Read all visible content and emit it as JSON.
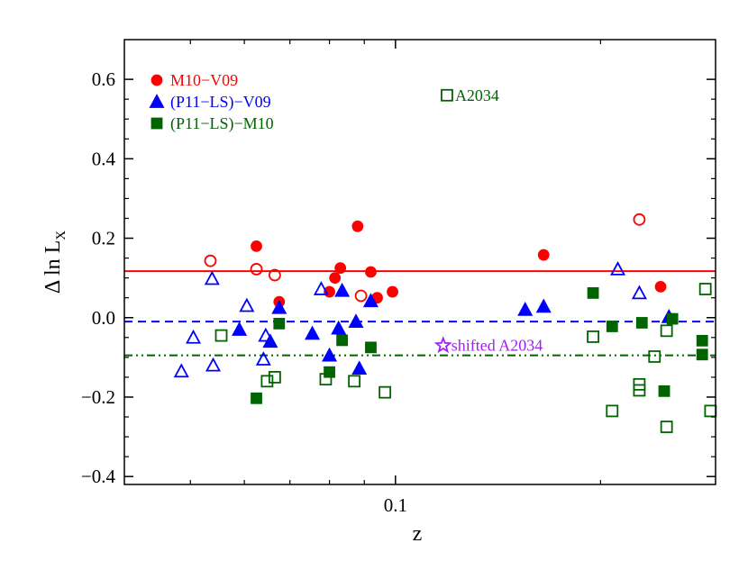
{
  "chart_data": {
    "type": "scatter",
    "xlabel": "z",
    "ylabel_main": "Δ ln L",
    "ylabel_sub": "X",
    "xscale": "log",
    "xlim": [
      0.04,
      0.295
    ],
    "ylim": [
      -0.42,
      0.7
    ],
    "x_tick_labels": [
      {
        "value": 0.1,
        "label": "0.1"
      }
    ],
    "y_ticks": [
      -0.4,
      -0.2,
      0.0,
      0.2,
      0.4,
      0.6
    ],
    "y_tick_labels": [
      "−0.4",
      "−0.2",
      "0.0",
      "0.2",
      "0.4",
      "0.6"
    ],
    "x_minor_ticks": [
      0.05,
      0.06,
      0.07,
      0.08,
      0.09,
      0.2
    ],
    "grid": false,
    "legend_position": "top-left",
    "colors": {
      "red": "#ff0000",
      "blue": "#0000ff",
      "green": "#006400",
      "purple": "#a020f0"
    },
    "series": [
      {
        "name": "M10−V09",
        "color": "#ff0000",
        "marker": "circle",
        "mean_line": 0.117,
        "line_style": "solid",
        "points": [
          {
            "x": 0.0625,
            "y": 0.18,
            "filled": true
          },
          {
            "x": 0.0675,
            "y": 0.04,
            "filled": true
          },
          {
            "x": 0.08,
            "y": 0.065,
            "filled": true
          },
          {
            "x": 0.0815,
            "y": 0.1,
            "filled": true
          },
          {
            "x": 0.083,
            "y": 0.125,
            "filled": true
          },
          {
            "x": 0.088,
            "y": 0.23,
            "filled": true
          },
          {
            "x": 0.092,
            "y": 0.115,
            "filled": true
          },
          {
            "x": 0.094,
            "y": 0.05,
            "filled": true
          },
          {
            "x": 0.099,
            "y": 0.065,
            "filled": true
          },
          {
            "x": 0.165,
            "y": 0.158,
            "filled": true
          },
          {
            "x": 0.245,
            "y": 0.078,
            "filled": true
          },
          {
            "x": 0.0535,
            "y": 0.143,
            "filled": false
          },
          {
            "x": 0.0625,
            "y": 0.122,
            "filled": false
          },
          {
            "x": 0.0665,
            "y": 0.107,
            "filled": false
          },
          {
            "x": 0.089,
            "y": 0.055,
            "filled": false
          },
          {
            "x": 0.228,
            "y": 0.247,
            "filled": false
          }
        ]
      },
      {
        "name": "(P11−LS)−V09",
        "color": "#0000ff",
        "marker": "triangle",
        "mean_line": -0.01,
        "line_style": "dashed",
        "points": [
          {
            "x": 0.0505,
            "y": -0.05,
            "filled": false
          },
          {
            "x": 0.0485,
            "y": -0.135,
            "filled": false
          },
          {
            "x": 0.0538,
            "y": 0.098,
            "filled": false
          },
          {
            "x": 0.054,
            "y": -0.12,
            "filled": false
          },
          {
            "x": 0.0605,
            "y": 0.03,
            "filled": false
          },
          {
            "x": 0.0645,
            "y": -0.045,
            "filled": false
          },
          {
            "x": 0.064,
            "y": -0.105,
            "filled": false
          },
          {
            "x": 0.0778,
            "y": 0.072,
            "filled": false
          },
          {
            "x": 0.212,
            "y": 0.122,
            "filled": false
          },
          {
            "x": 0.228,
            "y": 0.062,
            "filled": false
          },
          {
            "x": 0.059,
            "y": -0.03,
            "filled": true
          },
          {
            "x": 0.0655,
            "y": -0.06,
            "filled": true
          },
          {
            "x": 0.0675,
            "y": 0.025,
            "filled": true
          },
          {
            "x": 0.0755,
            "y": -0.04,
            "filled": true
          },
          {
            "x": 0.08,
            "y": -0.095,
            "filled": true
          },
          {
            "x": 0.0825,
            "y": -0.027,
            "filled": true
          },
          {
            "x": 0.0835,
            "y": 0.068,
            "filled": true
          },
          {
            "x": 0.0875,
            "y": -0.01,
            "filled": true
          },
          {
            "x": 0.0885,
            "y": -0.128,
            "filled": true
          },
          {
            "x": 0.092,
            "y": 0.042,
            "filled": true
          },
          {
            "x": 0.155,
            "y": 0.02,
            "filled": true
          },
          {
            "x": 0.165,
            "y": 0.028,
            "filled": true
          },
          {
            "x": 0.252,
            "y": 0.002,
            "filled": true
          }
        ]
      },
      {
        "name": "(P11−LS)−M10",
        "color": "#006400",
        "marker": "square",
        "mean_line": -0.095,
        "line_style": "dash-dot-dot",
        "points": [
          {
            "x": 0.0555,
            "y": -0.045,
            "filled": false
          },
          {
            "x": 0.0648,
            "y": -0.16,
            "filled": false
          },
          {
            "x": 0.0665,
            "y": -0.15,
            "filled": false
          },
          {
            "x": 0.079,
            "y": -0.155,
            "filled": false
          },
          {
            "x": 0.087,
            "y": -0.16,
            "filled": false
          },
          {
            "x": 0.0965,
            "y": -0.188,
            "filled": false
          },
          {
            "x": 0.195,
            "y": -0.048,
            "filled": false
          },
          {
            "x": 0.208,
            "y": -0.235,
            "filled": false
          },
          {
            "x": 0.228,
            "y": -0.168,
            "filled": false
          },
          {
            "x": 0.228,
            "y": -0.183,
            "filled": false
          },
          {
            "x": 0.24,
            "y": -0.098,
            "filled": false
          },
          {
            "x": 0.25,
            "y": -0.033,
            "filled": false
          },
          {
            "x": 0.25,
            "y": -0.275,
            "filled": false
          },
          {
            "x": 0.285,
            "y": 0.072,
            "filled": false
          },
          {
            "x": 0.29,
            "y": -0.235,
            "filled": false
          },
          {
            "x": 0.0625,
            "y": -0.203,
            "filled": true
          },
          {
            "x": 0.0675,
            "y": -0.015,
            "filled": true
          },
          {
            "x": 0.08,
            "y": -0.137,
            "filled": true
          },
          {
            "x": 0.0835,
            "y": -0.057,
            "filled": true
          },
          {
            "x": 0.092,
            "y": -0.075,
            "filled": true
          },
          {
            "x": 0.195,
            "y": 0.062,
            "filled": true
          },
          {
            "x": 0.208,
            "y": -0.022,
            "filled": true
          },
          {
            "x": 0.23,
            "y": -0.013,
            "filled": true
          },
          {
            "x": 0.248,
            "y": -0.185,
            "filled": true
          },
          {
            "x": 0.255,
            "y": -0.003,
            "filled": true
          },
          {
            "x": 0.282,
            "y": -0.058,
            "filled": true
          },
          {
            "x": 0.282,
            "y": -0.093,
            "filled": true
          }
        ]
      }
    ],
    "annotations": [
      {
        "text": "A2034",
        "color": "#006400",
        "marker": "square",
        "filled": false,
        "x": 0.119,
        "y": 0.56
      },
      {
        "text": "shifted  A2034",
        "color": "#a020f0",
        "marker": "star",
        "filled": false,
        "x": 0.1175,
        "y": -0.07
      }
    ]
  }
}
